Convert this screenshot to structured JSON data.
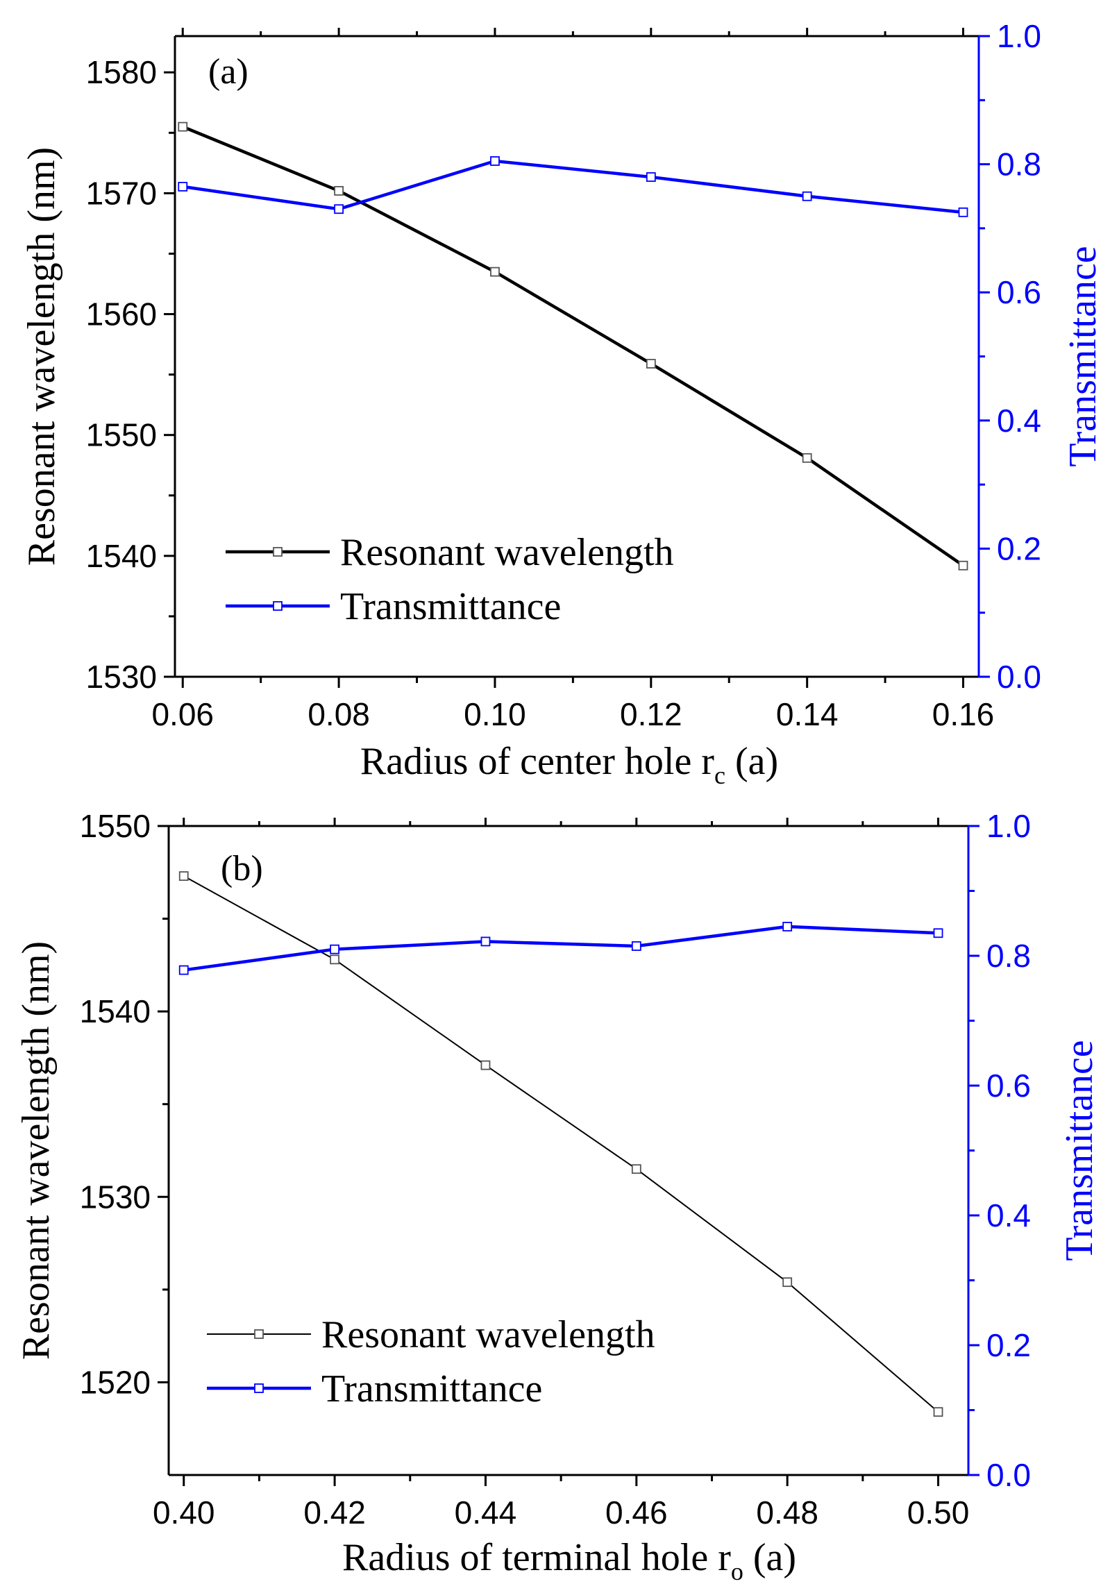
{
  "figure": {
    "colors": {
      "wavelength": "#000000",
      "transmittance": "#0000ff",
      "axis": "#000000",
      "right_axis": "#0000ff"
    }
  },
  "chart_data": [
    {
      "type": "line",
      "panel_label": "(a)",
      "xlabel_main": "Radius of center hole r",
      "xlabel_sub": "c",
      "xlabel_tail": " (a)",
      "ylabel": "Resonant wavelength (nm)",
      "ylabel_right": "Transmittance",
      "x": [
        0.06,
        0.08,
        0.1,
        0.12,
        0.14,
        0.16
      ],
      "xticks": [
        "0.06",
        "0.08",
        "0.10",
        "0.12",
        "0.14",
        "0.16"
      ],
      "xlim": [
        0.059,
        0.162
      ],
      "ylim": [
        1530,
        1583
      ],
      "yticks": [
        "1530",
        "1540",
        "1550",
        "1560",
        "1570",
        "1580"
      ],
      "ylim_right": [
        0.0,
        1.0
      ],
      "yticks_right": [
        "0.0",
        "0.2",
        "0.4",
        "0.6",
        "0.8",
        "1.0"
      ],
      "series": [
        {
          "name": "Resonant wavelength",
          "axis": "left",
          "values": [
            1575.5,
            1570.2,
            1563.5,
            1555.9,
            1548.1,
            1539.2
          ]
        },
        {
          "name": "Transmittance",
          "axis": "right",
          "values": [
            0.765,
            0.73,
            0.805,
            0.78,
            0.75,
            0.725
          ]
        }
      ],
      "legend": "bottom-left"
    },
    {
      "type": "line",
      "panel_label": "(b)",
      "xlabel_main": "Radius of terminal hole r",
      "xlabel_sub": "o",
      "xlabel_tail": " (a)",
      "ylabel": "Resonant wavelength (nm)",
      "ylabel_right": "Transmittance",
      "x": [
        0.4,
        0.42,
        0.44,
        0.46,
        0.48,
        0.5
      ],
      "xticks": [
        "0.40",
        "0.42",
        "0.44",
        "0.46",
        "0.48",
        "0.50"
      ],
      "xlim": [
        0.398,
        0.504
      ],
      "ylim": [
        1515,
        1550
      ],
      "yticks": [
        "1520",
        "1530",
        "1540",
        "1550"
      ],
      "ylim_right": [
        0.0,
        1.0
      ],
      "yticks_right": [
        "0.0",
        "0.2",
        "0.4",
        "0.6",
        "0.8",
        "1.0"
      ],
      "series": [
        {
          "name": "Resonant wavelength",
          "axis": "left",
          "values": [
            1547.3,
            1542.8,
            1537.1,
            1531.5,
            1525.4,
            1518.4
          ]
        },
        {
          "name": "Transmittance",
          "axis": "right",
          "values": [
            0.778,
            0.81,
            0.822,
            0.815,
            0.845,
            0.835
          ]
        }
      ],
      "legend": "bottom-left"
    }
  ]
}
